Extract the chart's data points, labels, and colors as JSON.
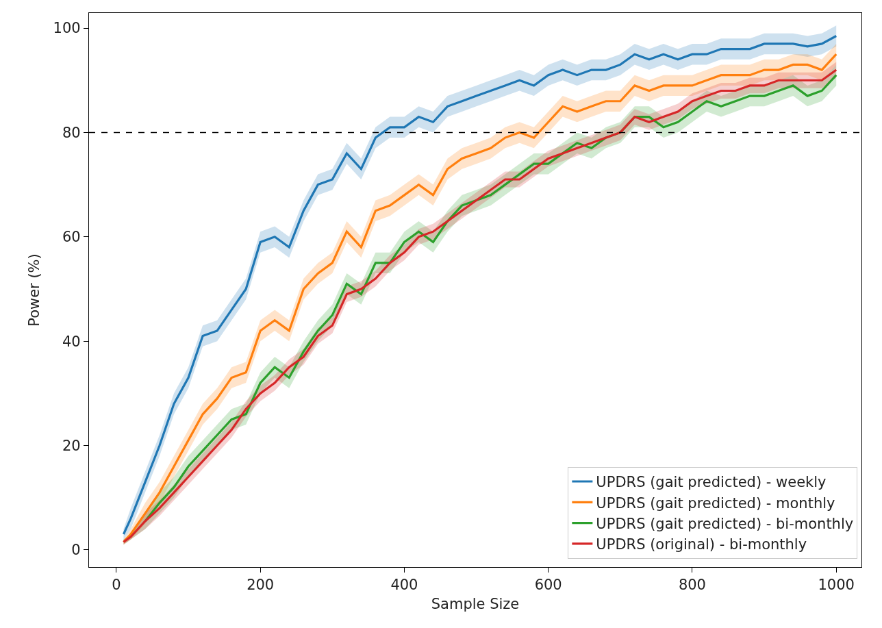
{
  "chart_data": {
    "type": "line",
    "xlabel": "Sample Size",
    "ylabel": "Power (%)",
    "x": [
      10,
      20,
      40,
      60,
      80,
      100,
      120,
      140,
      160,
      180,
      200,
      220,
      240,
      260,
      280,
      300,
      320,
      340,
      360,
      380,
      400,
      420,
      440,
      460,
      480,
      500,
      520,
      540,
      560,
      580,
      600,
      620,
      640,
      660,
      680,
      700,
      720,
      740,
      760,
      780,
      800,
      820,
      840,
      860,
      880,
      900,
      920,
      940,
      960,
      980,
      1000
    ],
    "xlim": [
      -38,
      1035
    ],
    "xticks": [
      0,
      200,
      400,
      600,
      800,
      1000
    ],
    "ylim": [
      -3.3,
      102.9
    ],
    "yticks": [
      0,
      20,
      40,
      60,
      80,
      100
    ],
    "grid": false,
    "legend": "bottom right",
    "marker": "none",
    "line_style": "solid",
    "ref_lines": [
      {
        "axis": "y",
        "value": 80,
        "color": "#000000",
        "line_style": "dashed"
      }
    ],
    "series": [
      {
        "name": "UPDRS (gait predicted) - weekly",
        "color": "#1f77b4",
        "values": [
          3,
          6,
          13,
          20,
          28,
          33,
          41,
          42,
          46,
          50,
          59,
          60,
          58,
          65,
          70,
          71,
          76,
          73,
          79,
          81,
          81,
          83,
          82,
          85,
          86,
          87,
          88,
          89,
          90,
          89,
          91,
          92,
          91,
          92,
          92,
          93,
          95,
          94,
          95,
          94,
          95,
          95,
          96,
          96,
          96,
          97,
          97,
          97,
          96.5,
          97,
          98.5
        ],
        "lower": [
          2,
          4,
          11,
          18,
          26,
          31,
          39,
          40,
          44,
          48,
          57,
          58,
          56,
          63,
          68,
          69,
          74,
          71,
          77,
          79,
          79,
          81,
          80,
          83,
          84,
          85,
          86,
          87,
          88,
          87,
          89,
          90,
          89,
          90,
          90,
          91,
          93,
          92,
          93,
          92,
          93,
          93,
          94,
          94,
          94,
          95,
          95,
          95,
          94.5,
          95,
          96.5
        ],
        "upper": [
          4,
          8,
          15,
          22,
          30,
          35,
          43,
          44,
          48,
          52,
          61,
          62,
          60,
          67,
          72,
          73,
          78,
          75,
          81,
          83,
          83,
          85,
          84,
          87,
          88,
          89,
          90,
          91,
          92,
          91,
          93,
          94,
          93,
          94,
          94,
          95,
          97,
          96,
          97,
          96,
          97,
          97,
          98,
          98,
          98,
          99,
          99,
          99,
          98.5,
          99,
          100.5
        ]
      },
      {
        "name": "UPDRS (gait predicted) - monthly",
        "color": "#ff7f0e",
        "values": [
          1.5,
          3,
          7,
          11,
          16,
          21,
          26,
          29,
          33,
          34,
          42,
          44,
          42,
          50,
          53,
          55,
          61,
          58,
          65,
          66,
          68,
          70,
          68,
          73,
          75,
          76,
          77,
          79,
          80,
          79,
          82,
          85,
          84,
          85,
          86,
          86,
          89,
          88,
          89,
          89,
          89,
          90,
          91,
          91,
          91,
          92,
          92,
          93,
          93,
          92,
          95
        ],
        "lower": [
          1,
          2,
          5,
          9,
          14,
          19,
          24,
          27,
          31,
          32,
          40,
          42,
          40,
          48,
          51,
          53,
          59,
          56,
          63,
          64,
          66,
          68,
          66,
          71,
          73,
          74,
          75,
          77,
          78,
          77,
          80,
          83,
          82,
          83,
          84,
          84,
          87,
          86,
          87,
          87,
          87,
          88,
          89,
          89,
          89,
          90,
          90,
          91,
          91,
          90,
          93
        ],
        "upper": [
          2,
          4,
          9,
          13,
          18,
          23,
          28,
          31,
          35,
          36,
          44,
          46,
          44,
          52,
          55,
          57,
          63,
          60,
          67,
          68,
          70,
          72,
          70,
          75,
          77,
          78,
          79,
          81,
          82,
          81,
          84,
          87,
          86,
          87,
          88,
          88,
          91,
          90,
          91,
          91,
          91,
          92,
          93,
          93,
          93,
          94,
          94,
          95,
          95,
          94,
          97
        ]
      },
      {
        "name": "UPDRS (gait predicted) - bi-monthly",
        "color": "#2ca02c",
        "values": [
          null,
          null,
          5.5,
          9,
          12,
          16,
          19,
          22,
          25,
          26,
          32,
          35,
          33,
          38,
          42,
          45,
          51,
          49,
          55,
          55,
          59,
          61,
          59,
          63,
          66,
          67,
          68,
          70,
          72,
          74,
          74,
          76,
          78,
          77,
          79,
          80,
          83,
          83,
          81,
          82,
          84,
          86,
          85,
          86,
          87,
          87,
          88,
          89,
          87,
          88,
          91
        ],
        "lower": [
          1,
          2,
          4,
          7,
          10,
          14,
          17,
          20,
          23,
          24,
          30,
          33,
          31,
          36,
          40,
          43,
          49,
          47,
          53,
          53,
          57,
          59,
          57,
          61,
          64,
          65,
          66,
          68,
          70,
          72,
          72,
          74,
          76,
          75,
          77,
          78,
          81,
          81,
          79,
          80,
          82,
          84,
          83,
          84,
          85,
          85,
          86,
          87,
          85,
          86,
          89
        ],
        "upper": [
          2,
          3,
          7,
          11,
          14,
          18,
          21,
          24,
          27,
          28,
          34,
          37,
          35,
          40,
          44,
          47,
          53,
          51,
          57,
          57,
          61,
          63,
          61,
          65,
          68,
          69,
          70,
          72,
          74,
          76,
          76,
          78,
          80,
          79,
          81,
          82,
          85,
          85,
          83,
          84,
          86,
          88,
          87,
          88,
          89,
          89,
          90,
          91,
          89,
          90,
          93
        ]
      },
      {
        "name": "UPDRS (original) - bi-monthly",
        "color": "#d62728",
        "values": [
          1.5,
          2.5,
          5.5,
          8,
          11,
          14,
          17,
          20,
          23,
          27,
          30,
          32,
          35,
          37,
          41,
          43,
          49,
          50,
          52,
          55,
          57,
          60,
          61,
          63,
          65,
          67,
          69,
          71,
          71,
          73,
          75,
          76,
          77,
          78,
          79,
          80,
          83,
          82,
          83,
          84,
          86,
          87,
          88,
          88,
          89,
          89,
          90,
          90,
          90,
          90,
          92
        ],
        "lower": [
          1,
          2,
          4,
          6.5,
          9.5,
          12.5,
          15.5,
          18.5,
          21.5,
          25.5,
          28.5,
          30.5,
          33.5,
          35.5,
          39.5,
          41.5,
          47.5,
          48.5,
          50.5,
          53.5,
          55.5,
          58.5,
          59.5,
          61.5,
          63.5,
          65.5,
          67.5,
          69.5,
          69.5,
          71.5,
          73.5,
          74.5,
          75.5,
          76.5,
          77.5,
          78.5,
          81.5,
          80.5,
          81.5,
          82.5,
          84.5,
          85.5,
          86.5,
          86.5,
          87.5,
          87.5,
          88.5,
          88.5,
          88.5,
          88.5,
          90.5
        ],
        "upper": [
          2,
          3,
          7,
          9.5,
          12.5,
          15.5,
          18.5,
          21.5,
          24.5,
          28.5,
          31.5,
          33.5,
          36.5,
          38.5,
          42.5,
          44.5,
          50.5,
          51.5,
          53.5,
          56.5,
          58.5,
          61.5,
          62.5,
          64.5,
          66.5,
          68.5,
          70.5,
          72.5,
          72.5,
          74.5,
          76.5,
          77.5,
          78.5,
          79.5,
          80.5,
          81.5,
          84.5,
          83.5,
          84.5,
          85.5,
          87.5,
          88.5,
          89.5,
          89.5,
          90.5,
          90.5,
          91.5,
          91.5,
          91.5,
          91.5,
          93.5
        ]
      }
    ]
  }
}
